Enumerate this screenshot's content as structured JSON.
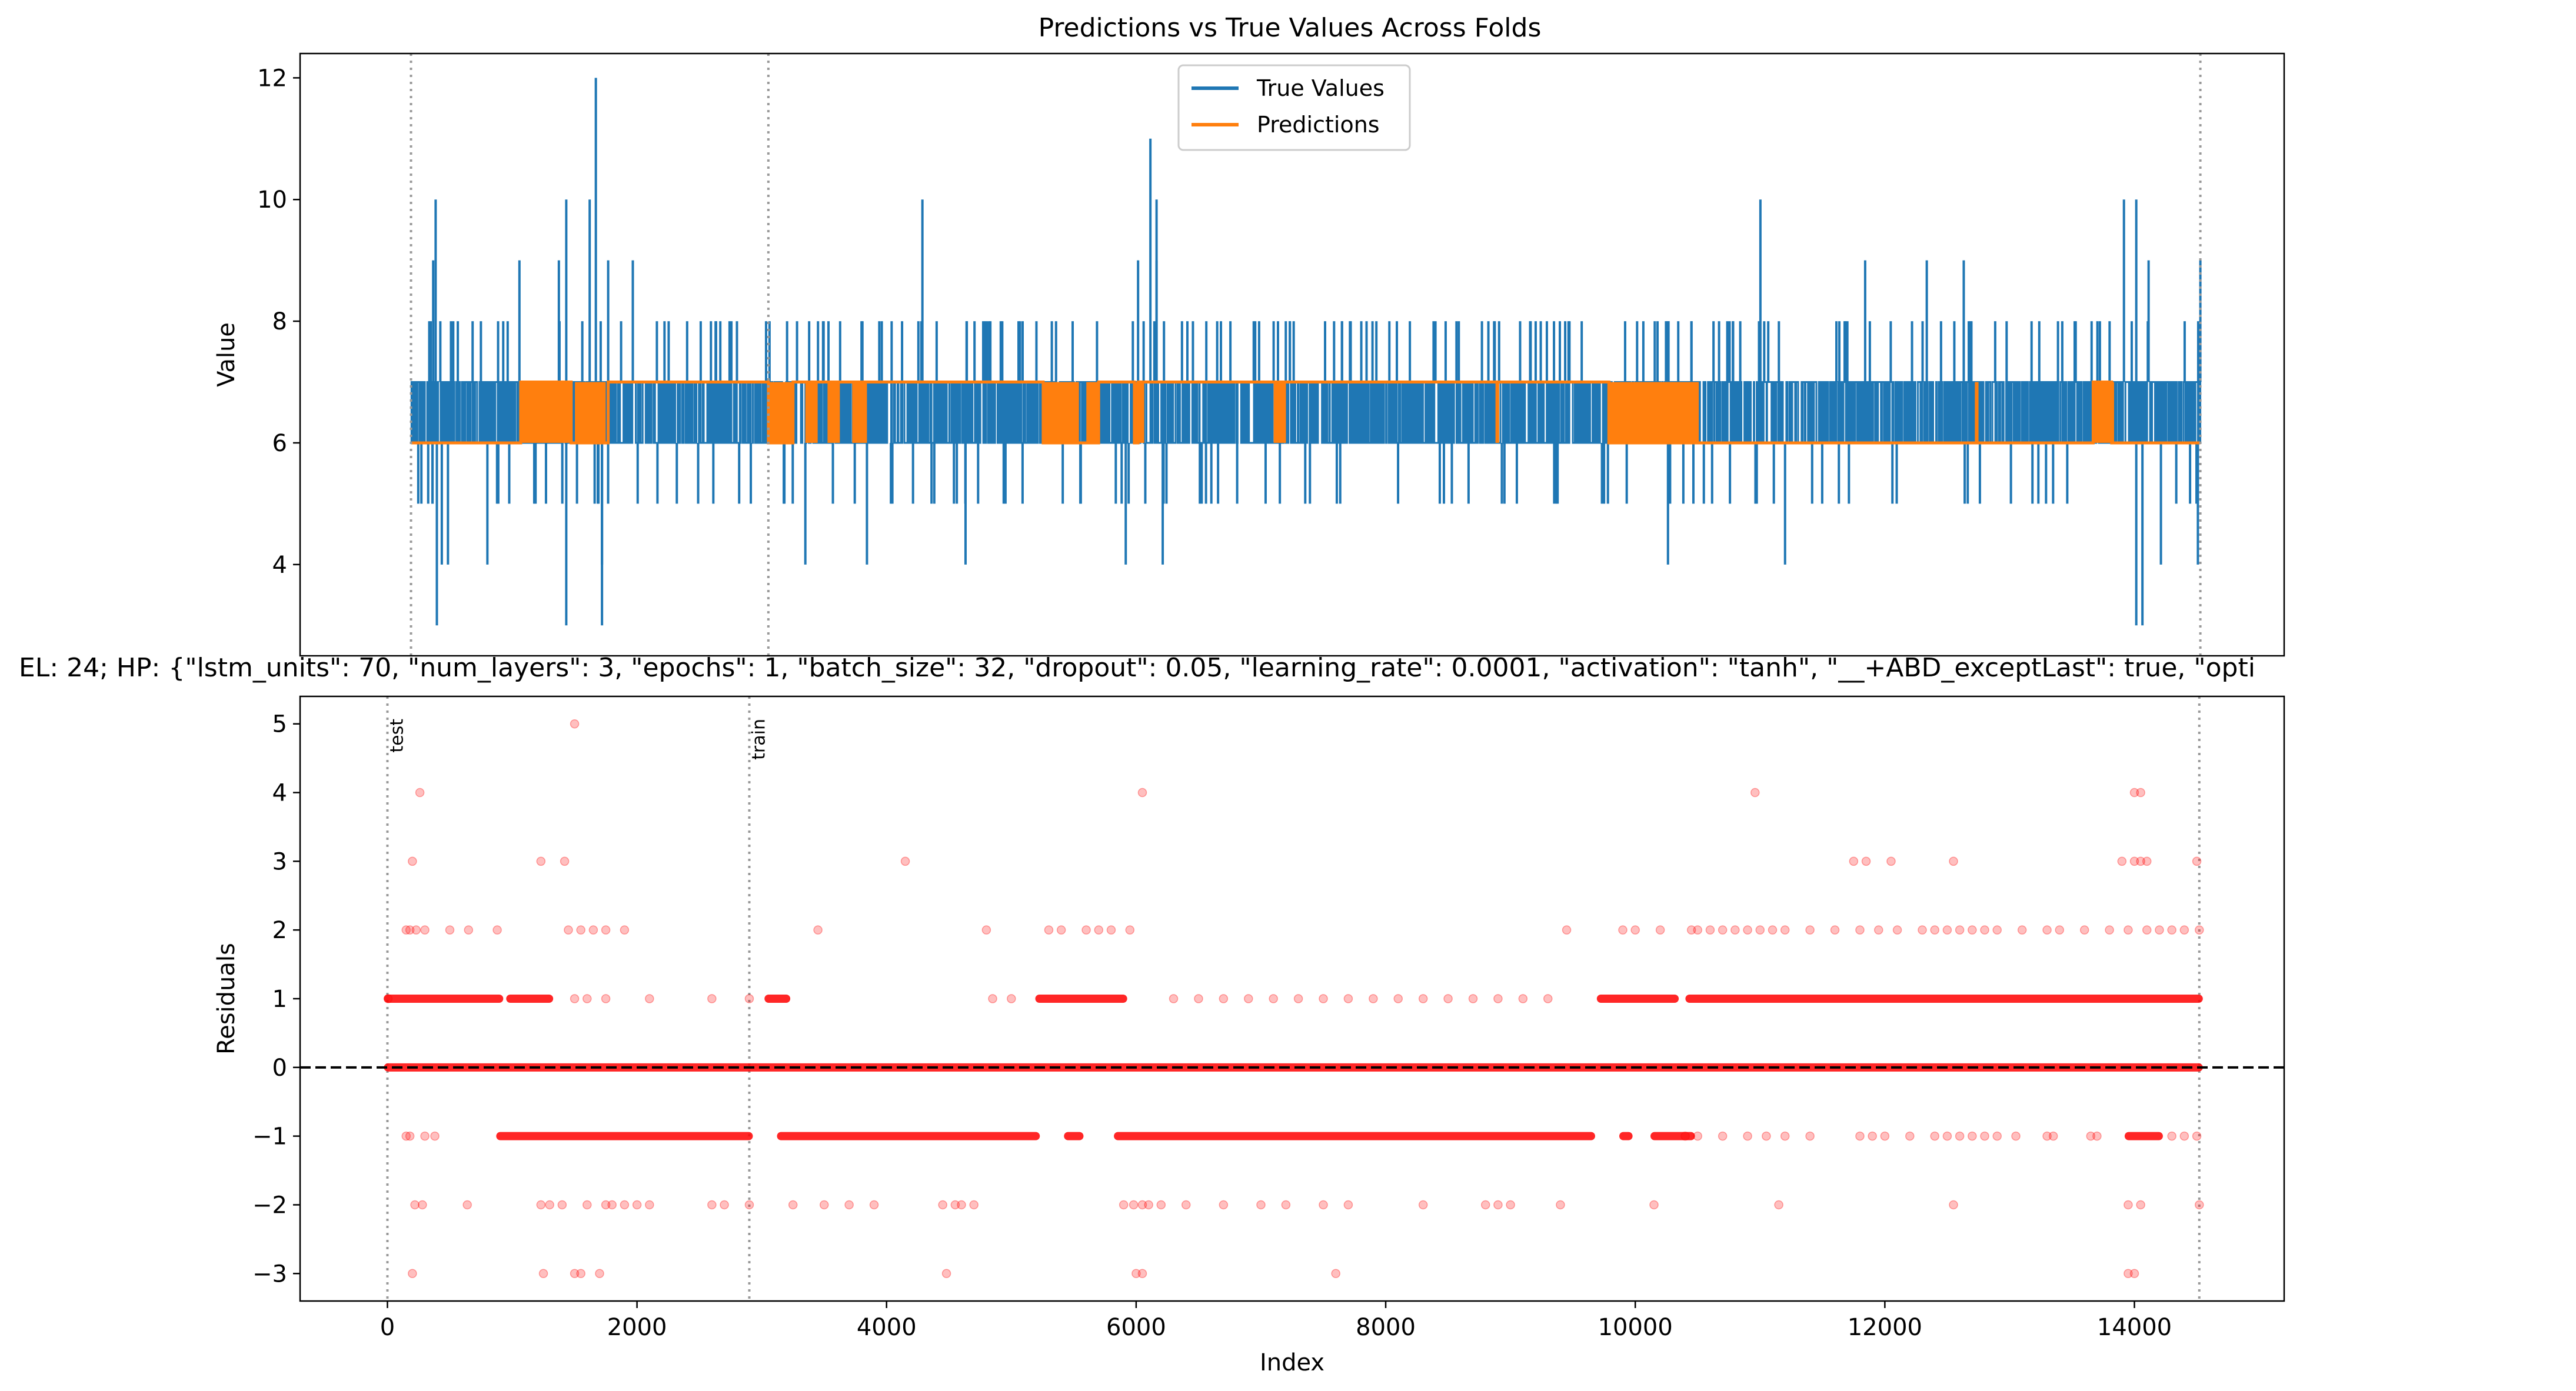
{
  "figure": {
    "top_title": "Predictions vs True Values Across Folds",
    "bottom_title": "EL: 24; HP: {\"lstm_units\": 70, \"num_layers\": 3, \"epochs\": 1, \"batch_size\": 32, \"dropout\": 0.05, \"learning_rate\": 0.0001, \"activation\": \"tanh\", \"__+ABD_exceptLast\": true, \"opti"
  },
  "colors": {
    "true_values": "#1f77b4",
    "predictions": "#ff7f0e",
    "residuals": "#ff0000",
    "fold_line": "#999999",
    "zero_line": "#000000"
  },
  "chart_data": [
    {
      "type": "line",
      "title": "Predictions vs True Values Across Folds",
      "xlabel": "",
      "ylabel": "Value",
      "xlim": [
        -900,
        15200
      ],
      "ylim": [
        2.5,
        12.4
      ],
      "yticks": [
        4,
        6,
        8,
        10,
        12
      ],
      "legend": {
        "position": "top-center",
        "entries": [
          "True Values",
          "Predictions"
        ]
      },
      "fold_boundaries": [
        0,
        2900,
        14520
      ],
      "series": [
        {
          "name": "True Values",
          "baseline_band": [
            6,
            7
          ],
          "description_points": [
            [
              160,
              8
            ],
            [
              180,
              9
            ],
            [
              200,
              10
            ],
            [
              210,
              3
            ],
            [
              250,
              4
            ],
            [
              300,
              4
            ],
            [
              380,
              8
            ],
            [
              500,
              8
            ],
            [
              620,
              4
            ],
            [
              880,
              9
            ],
            [
              1000,
              5
            ],
            [
              1200,
              9
            ],
            [
              1260,
              3
            ],
            [
              1260,
              10
            ],
            [
              1450,
              10
            ],
            [
              1500,
              12
            ],
            [
              1550,
              3
            ],
            [
              1550,
              4
            ],
            [
              1600,
              9
            ],
            [
              1800,
              9
            ],
            [
              2000,
              5
            ],
            [
              2600,
              8
            ],
            [
              3200,
              4
            ],
            [
              3700,
              4
            ],
            [
              3800,
              8
            ],
            [
              4150,
              10
            ],
            [
              4500,
              4
            ],
            [
              5200,
              8
            ],
            [
              5800,
              4
            ],
            [
              5900,
              9
            ],
            [
              6000,
              11
            ],
            [
              6050,
              10
            ],
            [
              6050,
              9
            ],
            [
              6100,
              4
            ],
            [
              6300,
              8
            ],
            [
              7000,
              8
            ],
            [
              8000,
              8
            ],
            [
              9000,
              8
            ],
            [
              9500,
              8
            ],
            [
              10000,
              8
            ],
            [
              10200,
              4
            ],
            [
              10700,
              8
            ],
            [
              10950,
              10
            ],
            [
              11150,
              4
            ],
            [
              11800,
              9
            ],
            [
              12300,
              9
            ],
            [
              12600,
              9
            ],
            [
              13500,
              8
            ],
            [
              13900,
              10
            ],
            [
              14000,
              3
            ],
            [
              14050,
              3
            ],
            [
              14000,
              10
            ],
            [
              14100,
              9
            ],
            [
              14200,
              4
            ],
            [
              14500,
              4
            ],
            [
              14520,
              9
            ]
          ]
        },
        {
          "name": "Predictions",
          "segments": [
            [
              0,
              890,
              6
            ],
            [
              890,
              1300,
              7
            ],
            [
              1300,
              1600,
              6
            ],
            [
              1600,
              2900,
              7
            ],
            [
              2900,
              3100,
              6
            ],
            [
              3100,
              5130,
              7
            ],
            [
              5130,
              5400,
              6
            ],
            [
              5400,
              5580,
              6
            ],
            [
              5580,
              5870,
              7
            ],
            [
              5870,
              5900,
              6
            ],
            [
              5900,
              9720,
              7
            ],
            [
              9720,
              10400,
              6
            ],
            [
              10400,
              12700,
              6
            ],
            [
              12700,
              13650,
              6
            ],
            [
              13650,
              13800,
              7
            ],
            [
              13800,
              14520,
              6
            ]
          ],
          "toggle_regions": [
            [
              890,
              1300
            ],
            [
              1330,
              1580
            ],
            [
              2900,
              3100
            ],
            [
              3200,
              3300
            ],
            [
              3380,
              3480
            ],
            [
              3580,
              3700
            ],
            [
              5130,
              5420
            ],
            [
              5480,
              5580
            ],
            [
              5870,
              5950
            ],
            [
              7000,
              7100
            ],
            [
              8800,
              8830
            ],
            [
              9720,
              10450
            ],
            [
              12690,
              12720
            ],
            [
              13650,
              13820
            ]
          ]
        }
      ]
    },
    {
      "type": "scatter",
      "title": "EL: 24; HP: {\"lstm_units\": 70, \"num_layers\": 3, \"epochs\": 1, \"batch_size\": 32, \"dropout\": 0.05, \"learning_rate\": 0.0001, \"activation\": \"tanh\", \"__+ABD_exceptLast\": true, \"opti",
      "xlabel": "Index",
      "ylabel": "Residuals",
      "xlim": [
        -700,
        15200
      ],
      "ylim": [
        -3.4,
        5.4
      ],
      "xticks": [
        0,
        2000,
        4000,
        6000,
        8000,
        10000,
        12000,
        14000
      ],
      "yticks": [
        -3,
        -2,
        -1,
        0,
        1,
        2,
        3,
        4,
        5
      ],
      "reference_line_y": 0,
      "fold_boundaries": [
        0,
        2900,
        14520
      ],
      "fold_labels": [
        "test",
        "train"
      ],
      "dense_bands": [
        {
          "y": 0,
          "ranges": [
            [
              0,
              14520
            ]
          ]
        },
        {
          "y": 1,
          "ranges": [
            [
              0,
              900
            ],
            [
              980,
              1300
            ],
            [
              3050,
              3200
            ],
            [
              5220,
              5900
            ],
            [
              9720,
              10320
            ],
            [
              10430,
              14520
            ]
          ]
        },
        {
          "y": -1,
          "ranges": [
            [
              900,
              2900
            ],
            [
              3150,
              5200
            ],
            [
              5450,
              5550
            ],
            [
              5850,
              9650
            ],
            [
              9900,
              9950
            ],
            [
              10150,
              10450
            ],
            [
              13950,
              14200
            ]
          ]
        }
      ],
      "points": [
        [
          5,
          1
        ],
        [
          150,
          2
        ],
        [
          180,
          2
        ],
        [
          200,
          3
        ],
        [
          230,
          2
        ],
        [
          260,
          4
        ],
        [
          300,
          2
        ],
        [
          500,
          2
        ],
        [
          650,
          2
        ],
        [
          880,
          2
        ],
        [
          200,
          -3
        ],
        [
          150,
          -1
        ],
        [
          180,
          -1
        ],
        [
          300,
          -1
        ],
        [
          380,
          -1
        ],
        [
          220,
          -2
        ],
        [
          280,
          -2
        ],
        [
          640,
          -2
        ],
        [
          1230,
          3
        ],
        [
          1420,
          3
        ],
        [
          1500,
          5
        ],
        [
          1450,
          2
        ],
        [
          1550,
          2
        ],
        [
          1650,
          2
        ],
        [
          1750,
          2
        ],
        [
          1900,
          2
        ],
        [
          1230,
          -2
        ],
        [
          1300,
          -2
        ],
        [
          1400,
          -2
        ],
        [
          1500,
          -3
        ],
        [
          1550,
          -3
        ],
        [
          1600,
          -2
        ],
        [
          1700,
          -3
        ],
        [
          1750,
          -2
        ],
        [
          1800,
          -2
        ],
        [
          1900,
          -2
        ],
        [
          2000,
          -2
        ],
        [
          2100,
          -2
        ],
        [
          2600,
          -2
        ],
        [
          2700,
          -2
        ],
        [
          1250,
          -3
        ],
        [
          1500,
          1
        ],
        [
          1600,
          1
        ],
        [
          1750,
          1
        ],
        [
          2100,
          1
        ],
        [
          2600,
          1
        ],
        [
          2900,
          -2
        ],
        [
          2900,
          1
        ],
        [
          3450,
          2
        ],
        [
          3250,
          -2
        ],
        [
          3500,
          -2
        ],
        [
          3700,
          -2
        ],
        [
          3900,
          -2
        ],
        [
          4150,
          3
        ],
        [
          4450,
          -2
        ],
        [
          4480,
          -3
        ],
        [
          4550,
          -2
        ],
        [
          4600,
          -2
        ],
        [
          4700,
          -2
        ],
        [
          4800,
          2
        ],
        [
          4850,
          1
        ],
        [
          5000,
          1
        ],
        [
          5300,
          2
        ],
        [
          5400,
          2
        ],
        [
          5600,
          2
        ],
        [
          5700,
          2
        ],
        [
          5800,
          2
        ],
        [
          5950,
          2
        ],
        [
          6050,
          4
        ],
        [
          6050,
          -3
        ],
        [
          6000,
          -3
        ],
        [
          5900,
          -2
        ],
        [
          5980,
          -2
        ],
        [
          6050,
          -2
        ],
        [
          6100,
          -2
        ],
        [
          6200,
          -2
        ],
        [
          6300,
          1
        ],
        [
          6500,
          1
        ],
        [
          6700,
          1
        ],
        [
          6900,
          1
        ],
        [
          7100,
          1
        ],
        [
          7300,
          1
        ],
        [
          7500,
          1
        ],
        [
          7700,
          1
        ],
        [
          7900,
          1
        ],
        [
          8100,
          1
        ],
        [
          8300,
          1
        ],
        [
          8500,
          1
        ],
        [
          8700,
          1
        ],
        [
          8900,
          1
        ],
        [
          9100,
          1
        ],
        [
          9300,
          1
        ],
        [
          9450,
          2
        ],
        [
          6400,
          -2
        ],
        [
          6700,
          -2
        ],
        [
          7000,
          -2
        ],
        [
          7200,
          -2
        ],
        [
          7500,
          -2
        ],
        [
          7600,
          -3
        ],
        [
          7700,
          -2
        ],
        [
          8300,
          -2
        ],
        [
          8800,
          -2
        ],
        [
          8900,
          -2
        ],
        [
          9000,
          -2
        ],
        [
          9400,
          -2
        ],
        [
          9900,
          2
        ],
        [
          10000,
          2
        ],
        [
          10200,
          2
        ],
        [
          10150,
          -2
        ],
        [
          10450,
          2
        ],
        [
          10500,
          2
        ],
        [
          10600,
          2
        ],
        [
          10700,
          2
        ],
        [
          10800,
          2
        ],
        [
          10900,
          2
        ],
        [
          10960,
          4
        ],
        [
          11000,
          2
        ],
        [
          11100,
          2
        ],
        [
          11200,
          2
        ],
        [
          11400,
          2
        ],
        [
          11600,
          2
        ],
        [
          11800,
          2
        ],
        [
          11750,
          3
        ],
        [
          11850,
          3
        ],
        [
          12050,
          3
        ],
        [
          12550,
          3
        ],
        [
          11950,
          2
        ],
        [
          12100,
          2
        ],
        [
          12300,
          2
        ],
        [
          12400,
          2
        ],
        [
          12500,
          2
        ],
        [
          12600,
          2
        ],
        [
          12700,
          2
        ],
        [
          12800,
          2
        ],
        [
          12900,
          2
        ],
        [
          13100,
          2
        ],
        [
          13300,
          2
        ],
        [
          13400,
          2
        ],
        [
          13600,
          2
        ],
        [
          13800,
          2
        ],
        [
          13900,
          3
        ],
        [
          13950,
          2
        ],
        [
          14000,
          4
        ],
        [
          14050,
          4
        ],
        [
          14000,
          3
        ],
        [
          14050,
          3
        ],
        [
          14100,
          3
        ],
        [
          14100,
          2
        ],
        [
          14200,
          2
        ],
        [
          14300,
          2
        ],
        [
          14400,
          2
        ],
        [
          14500,
          3
        ],
        [
          14520,
          2
        ],
        [
          10400,
          -1
        ],
        [
          10500,
          -1
        ],
        [
          10700,
          -1
        ],
        [
          10900,
          -1
        ],
        [
          11050,
          -1
        ],
        [
          11200,
          -1
        ],
        [
          11400,
          -1
        ],
        [
          11800,
          -1
        ],
        [
          11900,
          -1
        ],
        [
          12000,
          -1
        ],
        [
          12200,
          -1
        ],
        [
          12400,
          -1
        ],
        [
          12500,
          -1
        ],
        [
          12600,
          -1
        ],
        [
          12700,
          -1
        ],
        [
          12800,
          -1
        ],
        [
          12900,
          -1
        ],
        [
          13050,
          -1
        ],
        [
          13300,
          -1
        ],
        [
          13350,
          -1
        ],
        [
          13650,
          -1
        ],
        [
          13700,
          -1
        ],
        [
          14300,
          -1
        ],
        [
          14400,
          -1
        ],
        [
          14500,
          -1
        ],
        [
          11150,
          -2
        ],
        [
          12550,
          -2
        ],
        [
          13950,
          -2
        ],
        [
          14050,
          -2
        ],
        [
          13950,
          -3
        ],
        [
          14000,
          -3
        ],
        [
          14520,
          -2
        ]
      ]
    }
  ]
}
